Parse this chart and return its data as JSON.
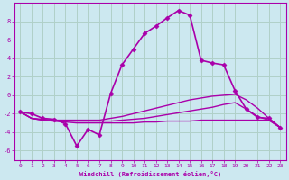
{
  "xlabel": "Windchill (Refroidissement éolien,°C)",
  "background_color": "#cce8f0",
  "grid_color": "#b0d0c8",
  "line_color": "#aa00aa",
  "xlim": [
    -0.5,
    23.5
  ],
  "ylim": [
    -7,
    10
  ],
  "yticks": [
    -6,
    -4,
    -2,
    0,
    2,
    4,
    6,
    8
  ],
  "xticks": [
    0,
    1,
    2,
    3,
    4,
    5,
    6,
    7,
    8,
    9,
    10,
    11,
    12,
    13,
    14,
    15,
    16,
    17,
    18,
    19,
    20,
    21,
    22,
    23
  ],
  "series": [
    {
      "x": [
        0,
        1,
        2,
        3,
        4,
        5,
        6,
        7,
        8,
        9,
        10,
        11,
        12,
        13,
        14,
        15,
        16,
        17,
        18,
        19,
        20,
        21,
        22,
        23
      ],
      "y": [
        -1.8,
        -2.0,
        -2.5,
        -2.6,
        -3.1,
        -5.5,
        -3.7,
        -4.3,
        0.2,
        3.3,
        5.0,
        6.7,
        7.5,
        8.4,
        9.2,
        8.7,
        3.8,
        3.5,
        3.3,
        0.5,
        -1.5,
        -2.4,
        -2.5,
        -3.5
      ],
      "marker": "D",
      "markersize": 2.5,
      "linewidth": 1.2
    },
    {
      "x": [
        0,
        1,
        2,
        3,
        4,
        5,
        6,
        7,
        8,
        9,
        10,
        11,
        12,
        13,
        14,
        15,
        16,
        17,
        18,
        19,
        20,
        21,
        22,
        23
      ],
      "y": [
        -1.8,
        -2.5,
        -2.6,
        -2.7,
        -2.7,
        -2.7,
        -2.7,
        -2.7,
        -2.5,
        -2.3,
        -2.0,
        -1.7,
        -1.4,
        -1.1,
        -0.8,
        -0.5,
        -0.3,
        -0.1,
        0.0,
        0.1,
        -0.5,
        -1.4,
        -2.5,
        -3.5
      ],
      "marker": null,
      "linewidth": 1.0
    },
    {
      "x": [
        0,
        1,
        2,
        3,
        4,
        5,
        6,
        7,
        8,
        9,
        10,
        11,
        12,
        13,
        14,
        15,
        16,
        17,
        18,
        19,
        20,
        21,
        22,
        23
      ],
      "y": [
        -1.8,
        -2.5,
        -2.7,
        -2.8,
        -2.8,
        -2.8,
        -2.8,
        -2.8,
        -2.8,
        -2.7,
        -2.6,
        -2.5,
        -2.3,
        -2.1,
        -1.9,
        -1.7,
        -1.5,
        -1.3,
        -1.0,
        -0.8,
        -1.5,
        -2.3,
        -2.7,
        -3.5
      ],
      "marker": null,
      "linewidth": 1.0
    },
    {
      "x": [
        0,
        1,
        2,
        3,
        4,
        5,
        6,
        7,
        8,
        9,
        10,
        11,
        12,
        13,
        14,
        15,
        16,
        17,
        18,
        19,
        20,
        21,
        22,
        23
      ],
      "y": [
        -1.8,
        -2.5,
        -2.7,
        -2.8,
        -2.9,
        -3.0,
        -3.0,
        -3.0,
        -3.0,
        -3.0,
        -3.0,
        -2.9,
        -2.9,
        -2.8,
        -2.8,
        -2.8,
        -2.7,
        -2.7,
        -2.7,
        -2.7,
        -2.7,
        -2.7,
        -2.7,
        -3.5
      ],
      "marker": null,
      "linewidth": 1.0
    }
  ]
}
